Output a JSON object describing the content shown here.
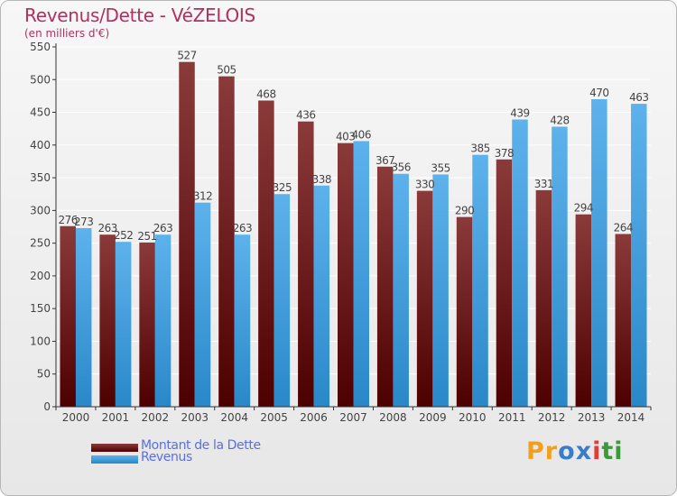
{
  "title": "Revenus/Dette - VéZELOIS",
  "subtitle": "(en milliers d'€)",
  "logo_text": "Proxiti",
  "colors": {
    "series1_top": "#8b3a3a",
    "series1_bottom": "#4d0000",
    "series2_top": "#5db2ec",
    "series2_bottom": "#2a88c8",
    "grid": "#ffffff",
    "axis": "#333333",
    "title": "#b03060",
    "legend_text": "#5a6fe0",
    "logo": [
      "#f0a020",
      "#f0a020",
      "#3a7cc8",
      "#3a7cc8",
      "#e03c3c",
      "#3a9a3a",
      "#3a9a3a"
    ]
  },
  "chart_data": {
    "type": "bar",
    "categories": [
      "2000",
      "2001",
      "2002",
      "2003",
      "2004",
      "2005",
      "2006",
      "2007",
      "2008",
      "2009",
      "2010",
      "2011",
      "2012",
      "2013",
      "2014"
    ],
    "series": [
      {
        "name": "Montant de la Dette",
        "values": [
          276,
          263,
          251,
          527,
          505,
          468,
          436,
          403,
          367,
          330,
          290,
          378,
          331,
          294,
          264
        ],
        "labels": [
          "276",
          "263",
          "251",
          "527",
          "505",
          "468",
          "436",
          "403",
          "367",
          "330",
          "290",
          "378",
          "331",
          "294",
          "264"
        ]
      },
      {
        "name": "Revenus",
        "values": [
          273,
          252,
          263,
          312,
          263,
          325,
          338,
          406,
          356,
          355,
          385,
          439,
          428,
          470,
          463
        ],
        "labels": [
          "273",
          "252",
          "263",
          "312",
          "263",
          "325",
          "338",
          "406",
          "356",
          "355",
          "385",
          "439",
          "428",
          "470",
          "463"
        ]
      }
    ],
    "ylim": [
      0,
      550
    ],
    "yticks": [
      0,
      50,
      100,
      150,
      200,
      250,
      300,
      350,
      400,
      450,
      500,
      550
    ],
    "grid": true,
    "legend_position": "bottom-left"
  }
}
